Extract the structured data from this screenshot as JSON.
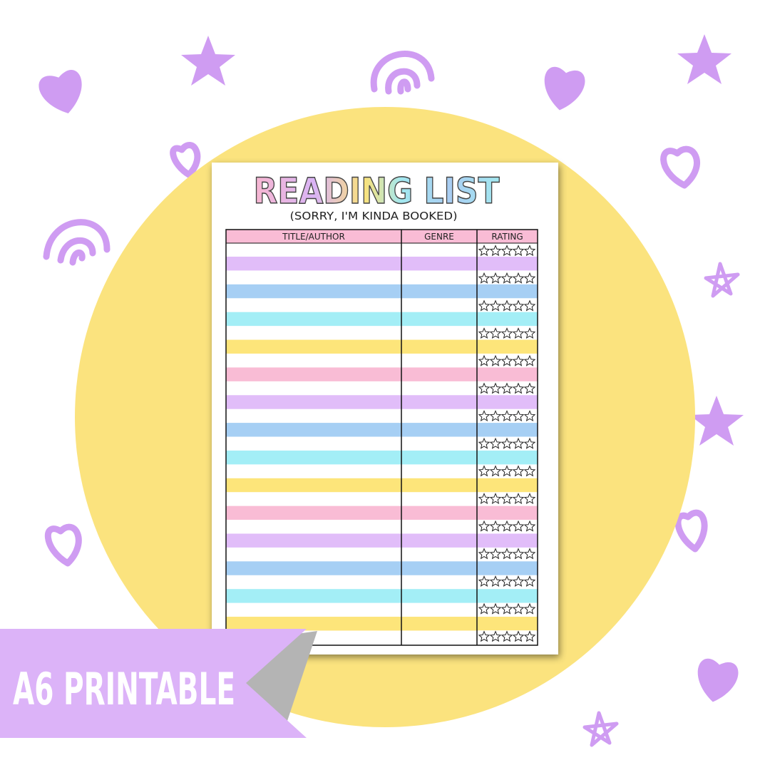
{
  "header": {
    "title": "READING LIST",
    "subtitle": "(SORRY, I'M KINDA BOOKED)"
  },
  "table": {
    "columns": [
      "TITLE/AUTHOR",
      "GENRE",
      "RATING"
    ]
  },
  "banner": {
    "text": "A6 PRINTABLE"
  }
}
